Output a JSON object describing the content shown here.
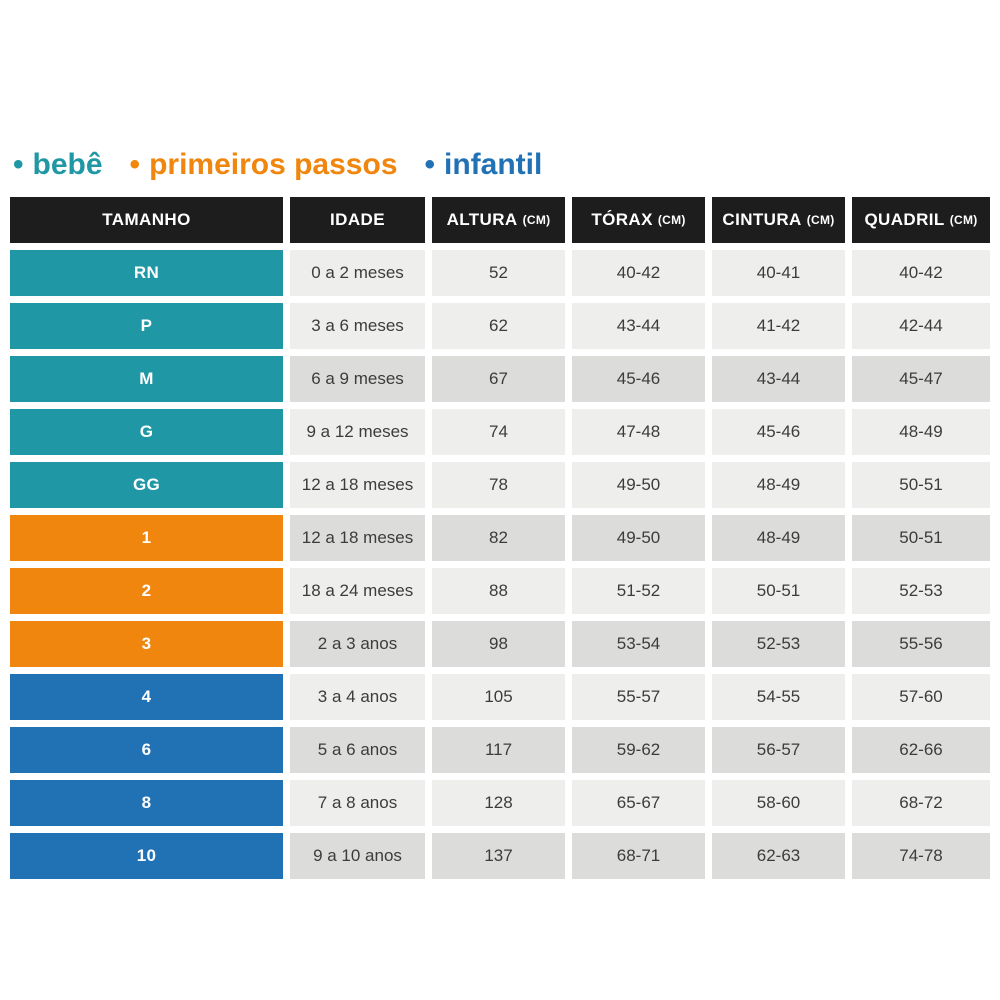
{
  "legend": {
    "bullet": "•",
    "items": [
      {
        "label": "bebê",
        "color": "#1f97a4"
      },
      {
        "label": "primeiros passos",
        "color": "#f0860e"
      },
      {
        "label": "infantil",
        "color": "#2171b5"
      }
    ]
  },
  "table": {
    "columns": [
      {
        "label": "TAMANHO",
        "unit": ""
      },
      {
        "label": "IDADE",
        "unit": ""
      },
      {
        "label": "ALTURA",
        "unit": "(CM)"
      },
      {
        "label": "TÓRAX",
        "unit": "(CM)"
      },
      {
        "label": "CINTURA",
        "unit": "(CM)"
      },
      {
        "label": "QUADRIL",
        "unit": "(CM)"
      }
    ],
    "rows": [
      {
        "size": "RN",
        "group": "bebe",
        "shade": "light",
        "idade": "0 a 2 meses",
        "altura": "52",
        "torax": "40-42",
        "cintura": "40-41",
        "quadril": "40-42"
      },
      {
        "size": "P",
        "group": "bebe",
        "shade": "light",
        "idade": "3 a 6 meses",
        "altura": "62",
        "torax": "43-44",
        "cintura": "41-42",
        "quadril": "42-44"
      },
      {
        "size": "M",
        "group": "bebe",
        "shade": "dark",
        "idade": "6 a 9 meses",
        "altura": "67",
        "torax": "45-46",
        "cintura": "43-44",
        "quadril": "45-47"
      },
      {
        "size": "G",
        "group": "bebe",
        "shade": "light",
        "idade": "9 a 12 meses",
        "altura": "74",
        "torax": "47-48",
        "cintura": "45-46",
        "quadril": "48-49"
      },
      {
        "size": "GG",
        "group": "bebe",
        "shade": "light",
        "idade": "12 a 18 meses",
        "altura": "78",
        "torax": "49-50",
        "cintura": "48-49",
        "quadril": "50-51"
      },
      {
        "size": "1",
        "group": "primeiros",
        "shade": "dark",
        "idade": "12 a 18 meses",
        "altura": "82",
        "torax": "49-50",
        "cintura": "48-49",
        "quadril": "50-51"
      },
      {
        "size": "2",
        "group": "primeiros",
        "shade": "light",
        "idade": "18 a 24 meses",
        "altura": "88",
        "torax": "51-52",
        "cintura": "50-51",
        "quadril": "52-53"
      },
      {
        "size": "3",
        "group": "primeiros",
        "shade": "dark",
        "idade": "2 a 3 anos",
        "altura": "98",
        "torax": "53-54",
        "cintura": "52-53",
        "quadril": "55-56"
      },
      {
        "size": "4",
        "group": "infantil",
        "shade": "light",
        "idade": "3 a 4 anos",
        "altura": "105",
        "torax": "55-57",
        "cintura": "54-55",
        "quadril": "57-60"
      },
      {
        "size": "6",
        "group": "infantil",
        "shade": "dark",
        "idade": "5 a 6 anos",
        "altura": "117",
        "torax": "59-62",
        "cintura": "56-57",
        "quadril": "62-66"
      },
      {
        "size": "8",
        "group": "infantil",
        "shade": "light",
        "idade": "7 a 8 anos",
        "altura": "128",
        "torax": "65-67",
        "cintura": "58-60",
        "quadril": "68-72"
      },
      {
        "size": "10",
        "group": "infantil",
        "shade": "dark",
        "idade": "9 a 10 anos",
        "altura": "137",
        "torax": "68-71",
        "cintura": "62-63",
        "quadril": "74-78"
      }
    ]
  },
  "colors": {
    "bebe": "#1f97a4",
    "primeiros": "#f0860e",
    "infantil": "#2171b5",
    "header_bg": "#1d1d1d",
    "row_light": "#eeeeec",
    "row_dark": "#dcdcda",
    "data_text": "#3c3c3c"
  },
  "chart_data": {
    "type": "table",
    "columns": [
      "TAMANHO",
      "IDADE",
      "ALTURA (CM)",
      "TÓRAX (CM)",
      "CINTURA (CM)",
      "QUADRIL (CM)"
    ],
    "groups": [
      {
        "name": "bebê",
        "color": "#1f97a4",
        "sizes": [
          "RN",
          "P",
          "M",
          "G",
          "GG"
        ]
      },
      {
        "name": "primeiros passos",
        "color": "#f0860e",
        "sizes": [
          "1",
          "2",
          "3"
        ]
      },
      {
        "name": "infantil",
        "color": "#2171b5",
        "sizes": [
          "4",
          "6",
          "8",
          "10"
        ]
      }
    ],
    "rows": [
      [
        "RN",
        "0 a 2 meses",
        "52",
        "40-42",
        "40-41",
        "40-42"
      ],
      [
        "P",
        "3 a 6 meses",
        "62",
        "43-44",
        "41-42",
        "42-44"
      ],
      [
        "M",
        "6 a 9 meses",
        "67",
        "45-46",
        "43-44",
        "45-47"
      ],
      [
        "G",
        "9 a 12 meses",
        "74",
        "47-48",
        "45-46",
        "48-49"
      ],
      [
        "GG",
        "12 a 18 meses",
        "78",
        "49-50",
        "48-49",
        "50-51"
      ],
      [
        "1",
        "12 a 18 meses",
        "82",
        "49-50",
        "48-49",
        "50-51"
      ],
      [
        "2",
        "18 a 24 meses",
        "88",
        "51-52",
        "50-51",
        "52-53"
      ],
      [
        "3",
        "2 a 3 anos",
        "98",
        "53-54",
        "52-53",
        "55-56"
      ],
      [
        "4",
        "3 a 4 anos",
        "105",
        "55-57",
        "54-55",
        "57-60"
      ],
      [
        "6",
        "5 a 6 anos",
        "117",
        "59-62",
        "56-57",
        "62-66"
      ],
      [
        "8",
        "7 a 8 anos",
        "128",
        "65-67",
        "58-60",
        "68-72"
      ],
      [
        "10",
        "9 a 10 anos",
        "137",
        "68-71",
        "62-63",
        "74-78"
      ]
    ]
  }
}
